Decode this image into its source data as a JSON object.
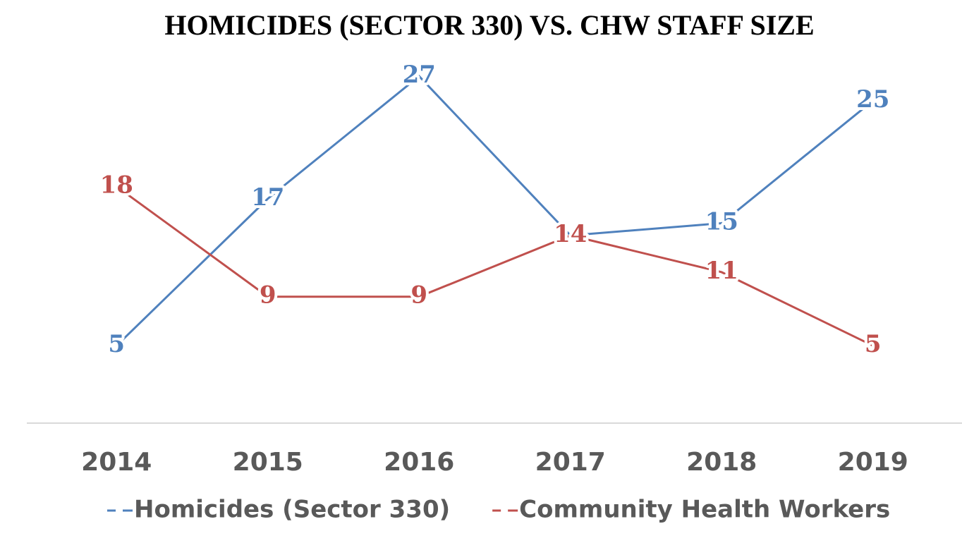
{
  "chart_data": {
    "type": "line",
    "title": "HOMICIDES (SECTOR 330) VS. CHW STAFF SIZE",
    "categories": [
      "2014",
      "2015",
      "2016",
      "2017",
      "2018",
      "2019"
    ],
    "series": [
      {
        "name": "Homicides (Sector 330)",
        "color": "#4f81bd",
        "values": [
          5,
          17,
          27,
          14,
          15,
          25
        ]
      },
      {
        "name": "Community Health Workers",
        "color": "#c0504d",
        "values": [
          18,
          9,
          9,
          14,
          11,
          5
        ]
      }
    ],
    "ylim": [
      0,
      30
    ],
    "grid": false,
    "legend": "bottom"
  }
}
